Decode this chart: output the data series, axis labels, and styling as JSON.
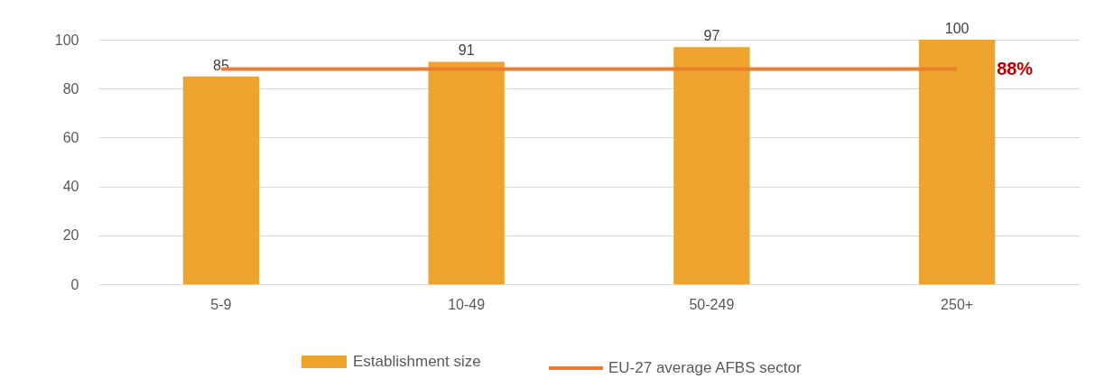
{
  "chart_data": {
    "type": "bar",
    "categories": [
      "5-9",
      "10-49",
      "50-249",
      "250+"
    ],
    "series": [
      {
        "name": "Establishment size",
        "color": "#eda32e",
        "values": [
          85,
          91,
          97,
          100
        ],
        "value_labels": [
          "85",
          "91",
          "97",
          "100"
        ]
      },
      {
        "name": "EU-27 average AFBS sector",
        "type": "line",
        "color": "#ed7d31",
        "values": [
          88,
          88,
          88,
          88
        ]
      }
    ],
    "annotations": [
      {
        "text": "88%",
        "x": "250+",
        "y": 88
      }
    ],
    "ylim": [
      0,
      100
    ],
    "yticks": [
      0,
      20,
      40,
      60,
      80,
      100
    ],
    "grid": "y",
    "legend": "bottom"
  }
}
